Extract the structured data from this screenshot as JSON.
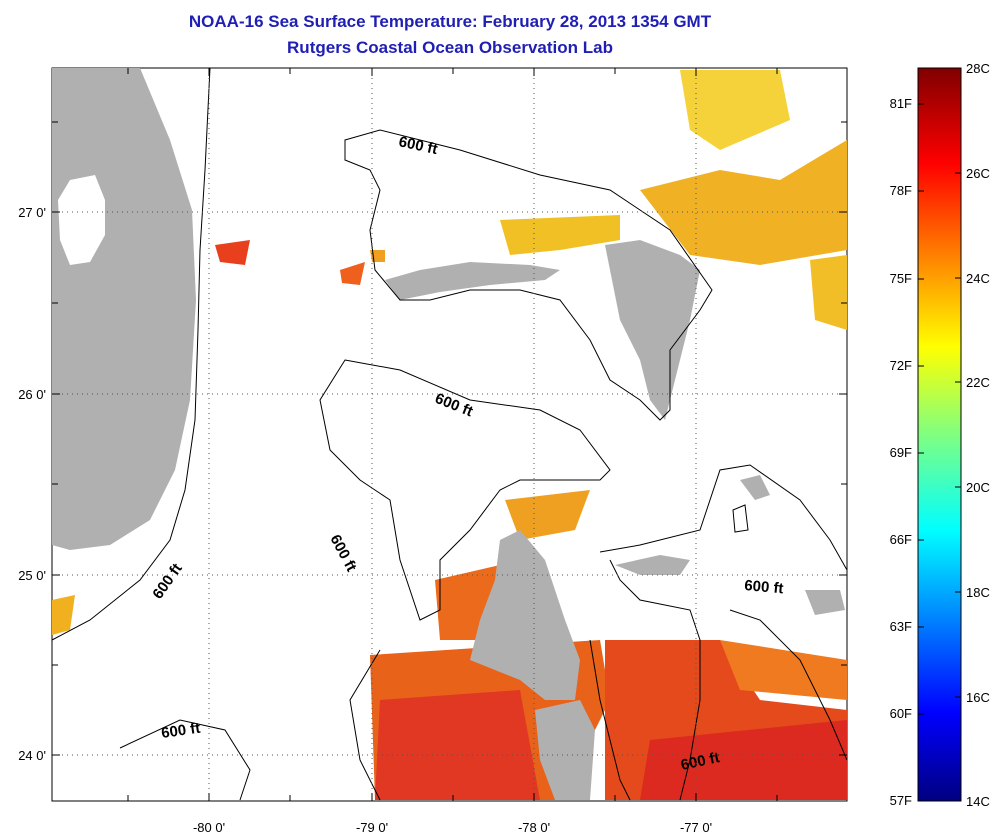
{
  "title": {
    "line1": "NOAA-16 Sea Surface Temperature:  February 28, 2013 1354 GMT",
    "line2": "Rutgers Coastal Ocean Observation Lab"
  },
  "axes": {
    "x_ticks": [
      "-80 0'",
      "-79 0'",
      "-78 0'",
      "-77 0'"
    ],
    "y_ticks": [
      "27 0'",
      "26 0'",
      "25 0'",
      "24 0'"
    ]
  },
  "contours": {
    "label": "600 ft"
  },
  "colorbar": {
    "fahrenheit": [
      "81F",
      "78F",
      "75F",
      "72F",
      "69F",
      "66F",
      "63F",
      "60F",
      "57F"
    ],
    "celsius": [
      "28C",
      "26C",
      "24C",
      "22C",
      "20C",
      "18C",
      "16C",
      "14C"
    ]
  },
  "colors": {
    "land": "#b0b0b0",
    "title": "#1f1fb4",
    "warm": "#e8501a",
    "hot": "#e03020",
    "yellow": "#f0c020",
    "orange": "#f08a20"
  }
}
